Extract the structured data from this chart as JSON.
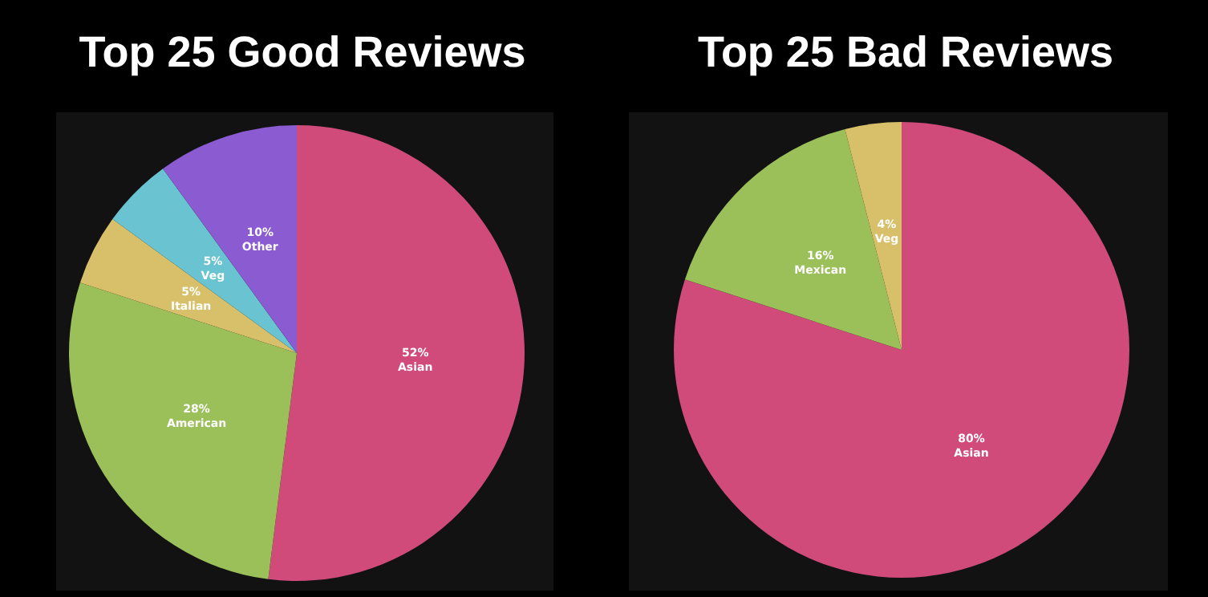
{
  "chart_data": [
    {
      "type": "pie",
      "title": "Top 25 Good Reviews",
      "categories": [
        "Asian",
        "American",
        "Italian",
        "Veg",
        "Other"
      ],
      "values": [
        52,
        28,
        5,
        5,
        10
      ],
      "colors": [
        "#d04b7a",
        "#9bbf59",
        "#d8c06a",
        "#6ac3d0",
        "#8a5bd1"
      ],
      "value_labels": [
        "52%",
        "28%",
        "5%",
        "5%",
        "10%"
      ]
    },
    {
      "type": "pie",
      "title": "Top 25 Bad Reviews",
      "categories": [
        "Asian",
        "Mexican",
        "Veg"
      ],
      "values": [
        80,
        16,
        4
      ],
      "colors": [
        "#d04b7a",
        "#9bbf59",
        "#d8c06a"
      ],
      "value_labels": [
        "80%",
        "16%",
        "4%"
      ]
    }
  ]
}
